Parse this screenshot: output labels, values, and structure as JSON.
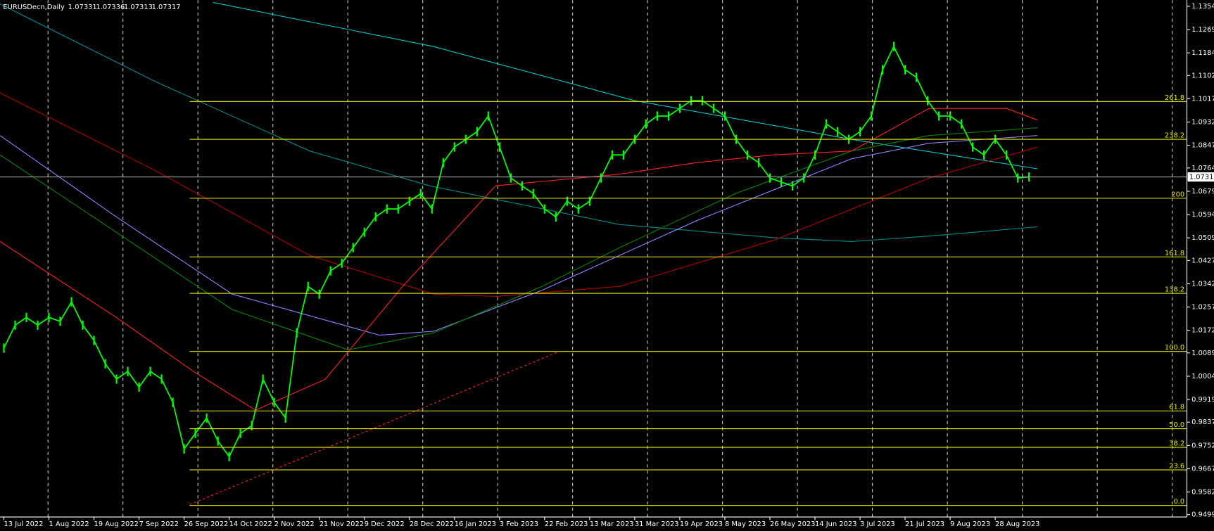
{
  "chart_data": {
    "type": "line",
    "symbol": "EURUSDecn,Daily",
    "ohlc": [
      1.07331,
      1.07336,
      1.07313,
      1.07317
    ],
    "last_price": 1.07317,
    "categories": [
      "13 Jul 2022",
      null,
      null,
      null,
      "1 Aug 2022",
      null,
      null,
      null,
      "19 Aug 2022",
      null,
      null,
      null,
      "7 Sep 2022",
      null,
      null,
      null,
      "26 Sep 2022",
      null,
      null,
      null,
      "14 Oct 2022",
      null,
      null,
      null,
      "2 Nov 2022",
      null,
      null,
      null,
      "21 Nov 2022",
      null,
      null,
      null,
      "9 Dec 2022",
      null,
      null,
      null,
      "28 Dec 2022",
      null,
      null,
      null,
      "16 Jan 2023",
      null,
      null,
      null,
      "3 Feb 2023",
      null,
      null,
      null,
      "22 Feb 2023",
      null,
      null,
      null,
      "13 Mar 2023",
      null,
      null,
      null,
      "31 Mar 2023",
      null,
      null,
      null,
      "19 Apr 2023",
      null,
      null,
      null,
      "8 May 2023",
      null,
      null,
      null,
      "26 May 2023",
      null,
      null,
      null,
      "14 Jun 2023",
      null,
      null,
      null,
      "3 Jul 2023",
      null,
      null,
      null,
      "21 Jul 2023",
      null,
      null,
      null,
      "9 Aug 2023",
      null,
      null,
      null,
      "28 Aug 2023",
      null,
      null,
      null
    ],
    "series": [
      {
        "color": "#00ff00",
        "values": [
          1.0107,
          1.0191,
          1.0219,
          1.0191,
          1.0219,
          1.0205,
          1.0276,
          1.0191,
          1.0135,
          1.005,
          0.9994,
          1.0022,
          0.9965,
          1.0022,
          0.9994,
          0.9909,
          0.9739,
          0.9796,
          0.9852,
          0.9768,
          0.9711,
          0.9796,
          0.9824,
          0.9994,
          0.9909,
          0.9852,
          1.0163,
          1.0332,
          1.0304,
          1.0389,
          1.0417,
          1.0474,
          1.053,
          1.0586,
          1.0615,
          1.0615,
          1.0643,
          1.0671,
          1.0615,
          1.0784,
          1.0841,
          1.0869,
          1.0897,
          1.0954,
          1.0841,
          1.0728,
          1.0699,
          1.0671,
          1.0615,
          1.0586,
          1.0643,
          1.0615,
          1.0643,
          1.0728,
          1.0812,
          1.0812,
          1.0869,
          1.0925,
          1.0954,
          1.0954,
          1.0982,
          1.101,
          1.101,
          1.0982,
          1.0954,
          1.0869,
          1.0812,
          1.0784,
          1.0728,
          1.0713,
          1.0699,
          1.0728,
          1.0812,
          1.0925,
          1.0897,
          1.0869,
          1.0897,
          1.0954,
          1.1123,
          1.1208,
          1.1123,
          1.1095,
          1.101,
          1.0954,
          1.0954,
          1.0925,
          1.0841,
          1.0812,
          1.0869,
          1.0812,
          1.0728,
          1.0732
        ]
      }
    ],
    "ylim": [
      0.9491,
      1.1377
    ],
    "yticks": [
      1.13545,
      1.12695,
      1.11845,
      {
        "value": 1.1102,
        "label": "1.11020"
      },
      {
        "value": 1.1017,
        "label": "1.10170"
      },
      {
        "value": 1.0932,
        "label": "1.09320"
      },
      1.08475,
      1.07645,
      1.06795,
      1.05945,
      1.05095,
      {
        "value": 1.0427,
        "label": "1.04270"
      },
      {
        "value": 1.0342,
        "label": "1.03420"
      },
      {
        "value": 1.0257,
        "label": "1.02570"
      },
      {
        "value": 1.0172,
        "label": "1.01720"
      },
      1.00895,
      1.00045,
      0.99195,
      {
        "value": 0.9837,
        "label": "0.98370"
      },
      {
        "value": 0.9752,
        "label": "0.97520"
      },
      {
        "value": 0.9667,
        "label": "0.96670"
      },
      {
        "value": 0.9582,
        "label": "0.95820"
      },
      0.94995
    ],
    "fib_levels": [
      {
        "label": "261.8",
        "value": 1.1007
      },
      {
        "label": "238.2",
        "value": 1.0869
      },
      {
        "label": "200",
        "value": 1.0654
      },
      {
        "label": "161.8",
        "value": 1.044
      },
      {
        "label": "138.2",
        "value": 1.0307
      },
      {
        "label": "100.0",
        "value": 1.0095
      },
      {
        "label": "61.8",
        "value": 0.9878
      },
      {
        "label": "50.0",
        "value": 0.9813
      },
      {
        "label": "38.2",
        "value": 0.9745
      },
      {
        "label": "23.6",
        "value": 0.9663
      },
      {
        "label": "0.0",
        "value": 0.9533
      }
    ],
    "fib_color": "#e8e800"
  }
}
